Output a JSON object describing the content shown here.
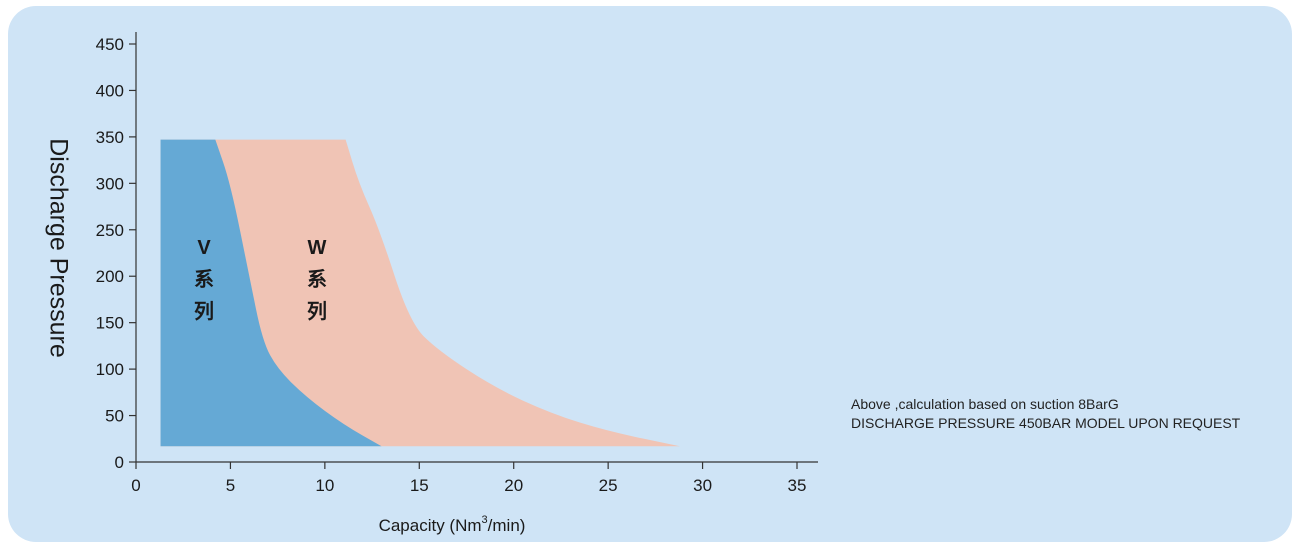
{
  "chart_data": {
    "type": "area",
    "title": "",
    "xlabel_text": "Capacity (Nm",
    "xlabel_sup": "3",
    "xlabel_tail": "/min)",
    "ylabel": "Discharge Pressure",
    "xlim": [
      0,
      35
    ],
    "ylim": [
      0,
      450
    ],
    "xticks": [
      0,
      5,
      10,
      15,
      20,
      25,
      30,
      35
    ],
    "yticks": [
      0,
      50,
      100,
      150,
      200,
      250,
      300,
      350,
      400,
      450
    ],
    "grid": false,
    "series": [
      {
        "name": "W 系列",
        "color": "#f0c4b5",
        "boundary": [
          {
            "x": 1.3,
            "y": 17
          },
          {
            "x": 1.3,
            "y": 347
          },
          {
            "x": 11.1,
            "y": 347
          },
          {
            "x": 11.8,
            "y": 300
          },
          {
            "x": 12.9,
            "y": 250
          },
          {
            "x": 14.5,
            "y": 150
          },
          {
            "x": 16.0,
            "y": 120
          },
          {
            "x": 19.0,
            "y": 80
          },
          {
            "x": 22.0,
            "y": 52
          },
          {
            "x": 25.0,
            "y": 33
          },
          {
            "x": 28.8,
            "y": 17
          }
        ]
      },
      {
        "name": "V 系列",
        "color": "#65a9d5",
        "boundary": [
          {
            "x": 1.3,
            "y": 17
          },
          {
            "x": 1.3,
            "y": 347
          },
          {
            "x": 4.2,
            "y": 347
          },
          {
            "x": 5.0,
            "y": 300
          },
          {
            "x": 6.0,
            "y": 200
          },
          {
            "x": 6.7,
            "y": 130
          },
          {
            "x": 7.5,
            "y": 100
          },
          {
            "x": 9.0,
            "y": 70
          },
          {
            "x": 11.0,
            "y": 40
          },
          {
            "x": 13.0,
            "y": 17
          }
        ]
      }
    ]
  },
  "labels": {
    "v_letter": "V",
    "v_char1": "系",
    "v_char2": "列",
    "w_letter": "W",
    "w_char1": "系",
    "w_char2": "列"
  },
  "note": {
    "line1": "Above ,calculation based on suction 8BarG",
    "line2": "DISCHARGE PRESSURE 450BAR MODEL UPON REQUEST"
  }
}
